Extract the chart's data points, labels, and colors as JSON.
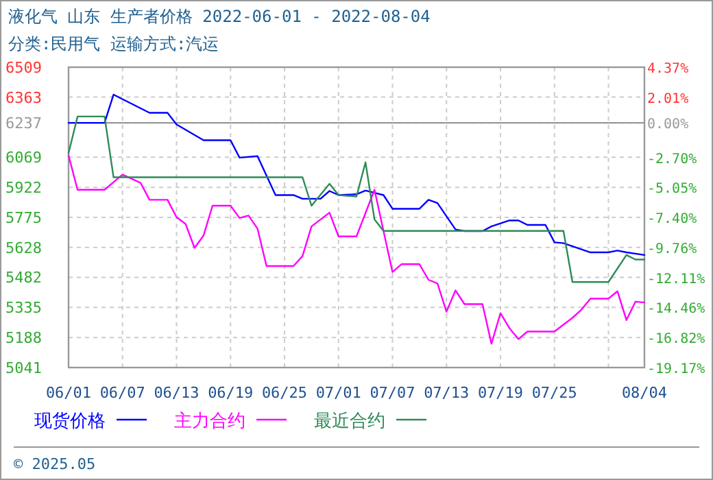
{
  "chart_data": {
    "type": "line",
    "title": "液化气 山东 生产者价格 2022-06-01 - 2022-08-04",
    "subtitle": "分类:民用气 运输方式:汽运",
    "x": [
      "--06-01",
      "--06-05",
      "--06-06",
      "--06-10",
      "--06-12",
      "--06-13",
      "--06-16",
      "--06-19",
      "--06-20",
      "--06-22",
      "--06-24",
      "--06-26",
      "--06-27",
      "--06-29",
      "--06-30",
      "--07-01",
      "--07-03",
      "--07-04",
      "--07-06",
      "--07-07",
      "--07-10",
      "--07-11",
      "--07-12",
      "--07-14",
      "--07-15",
      "--07-17",
      "--07-18",
      "--07-20",
      "--07-21",
      "--07-22",
      "--07-24",
      "--07-25",
      "--07-26",
      "--07-29",
      "--07-31",
      "--08-01",
      "--08-02",
      "--08-04"
    ],
    "series": [
      {
        "name": "现货价格",
        "color": "#0000ff",
        "values": [
          6237,
          6237,
          6375,
          6286,
          6286,
          6229,
          6152,
          6152,
          6067,
          6074,
          5884,
          5884,
          5866,
          5866,
          5904,
          5884,
          5888,
          5906,
          5884,
          5817,
          5817,
          5861,
          5845,
          5716,
          5708,
          5708,
          5731,
          5760,
          5760,
          5738,
          5738,
          5653,
          5649,
          5604,
          5604,
          5613,
          5604,
          5591
        ]
      },
      {
        "name": "主力合约",
        "color": "#ff00ff",
        "x": [
          "--06-01",
          "--06-02",
          "--06-05",
          "--06-07",
          "--06-09",
          "--06-10",
          "--06-12",
          "--06-13",
          "--06-14",
          "--06-15",
          "--06-16",
          "--06-17",
          "--06-19",
          "--06-20",
          "--06-21",
          "--06-22",
          "--06-23",
          "--06-26",
          "--06-27",
          "--06-28",
          "--06-30",
          "--07-01",
          "--07-03",
          "--07-05",
          "--07-07",
          "--07-08",
          "--07-10",
          "--07-11",
          "--07-12",
          "--07-13",
          "--07-14",
          "--07-15",
          "--07-17",
          "--07-18",
          "--07-19",
          "--07-20",
          "--07-21",
          "--07-22",
          "--07-25",
          "--07-27",
          "--07-28",
          "--07-29",
          "--07-31",
          "--08-01",
          "--08-02",
          "--08-03",
          "--08-04"
        ],
        "values": [
          6078,
          5910,
          5910,
          5984,
          5944,
          5861,
          5861,
          5776,
          5743,
          5626,
          5686,
          5832,
          5832,
          5772,
          5784,
          5720,
          5537,
          5537,
          5586,
          5731,
          5798,
          5682,
          5682,
          5910,
          5508,
          5546,
          5546,
          5470,
          5452,
          5314,
          5418,
          5351,
          5351,
          5157,
          5307,
          5233,
          5180,
          5217,
          5217,
          5284,
          5324,
          5378,
          5378,
          5414,
          5273,
          5363,
          5359
        ]
      },
      {
        "name": "最近合约",
        "color": "#2e8b57",
        "x": [
          "--06-01",
          "--06-02",
          "--06-05",
          "--06-06",
          "--06-27",
          "--06-28",
          "--06-30",
          "--07-01",
          "--07-03",
          "--07-04",
          "--07-05",
          "--07-06",
          "--07-07",
          "--07-26",
          "--07-27",
          "--07-31",
          "--08-02",
          "--08-03",
          "--08-04"
        ],
        "values": [
          6089,
          6268,
          6268,
          5971,
          5971,
          5832,
          5939,
          5884,
          5877,
          6044,
          5765,
          5709,
          5709,
          5709,
          5459,
          5459,
          5591,
          5569,
          5569
        ]
      }
    ],
    "xlim": [
      "--06-01",
      "--08-04"
    ],
    "xticks": [
      {
        "value": "--06-01",
        "label": "06/01"
      },
      {
        "value": "--06-07",
        "label": "06/07"
      },
      {
        "value": "--06-13",
        "label": "06/13"
      },
      {
        "value": "--06-19",
        "label": "06/19"
      },
      {
        "value": "--06-25",
        "label": "06/25"
      },
      {
        "value": "--07-01",
        "label": "07/01"
      },
      {
        "value": "--07-07",
        "label": "07/07"
      },
      {
        "value": "--07-13",
        "label": "07/13"
      },
      {
        "value": "--07-19",
        "label": "07/19"
      },
      {
        "value": "--07-25",
        "label": "07/25"
      },
      {
        "value": "--07-31",
        "label": null
      },
      {
        "value": "--08-04",
        "label": "08/04"
      }
    ],
    "ylim": [
      5041,
      6509
    ],
    "yticks": [
      6509,
      6363,
      6237,
      6069,
      5922,
      5775,
      5628,
      5482,
      5335,
      5188,
      5041
    ],
    "y2lim": [
      -19.17,
      4.37
    ],
    "y2ticks": [
      {
        "value": 4.37,
        "label": "4.37%"
      },
      {
        "value": 2.01,
        "label": "2.01%"
      },
      {
        "value": 0,
        "label": "0.00%"
      },
      {
        "value": -2.7,
        "label": "-2.70%"
      },
      {
        "value": -5.05,
        "label": "-5.05%"
      },
      {
        "value": -7.4,
        "label": "-7.40%"
      },
      {
        "value": -9.76,
        "label": "-9.76%"
      },
      {
        "value": -12.11,
        "label": "-12.11%"
      },
      {
        "value": -14.46,
        "label": "-14.46%"
      },
      {
        "value": -16.82,
        "label": "-16.82%"
      },
      {
        "value": -19.17,
        "label": "-19.17%"
      }
    ],
    "ref_lines": [
      {
        "axis": "y",
        "value": 6237,
        "color": "#999999"
      }
    ],
    "grid": true,
    "legend": "bottom",
    "line_style": "solid",
    "marker": "none",
    "annotations": [
      "© 2025.05"
    ]
  }
}
